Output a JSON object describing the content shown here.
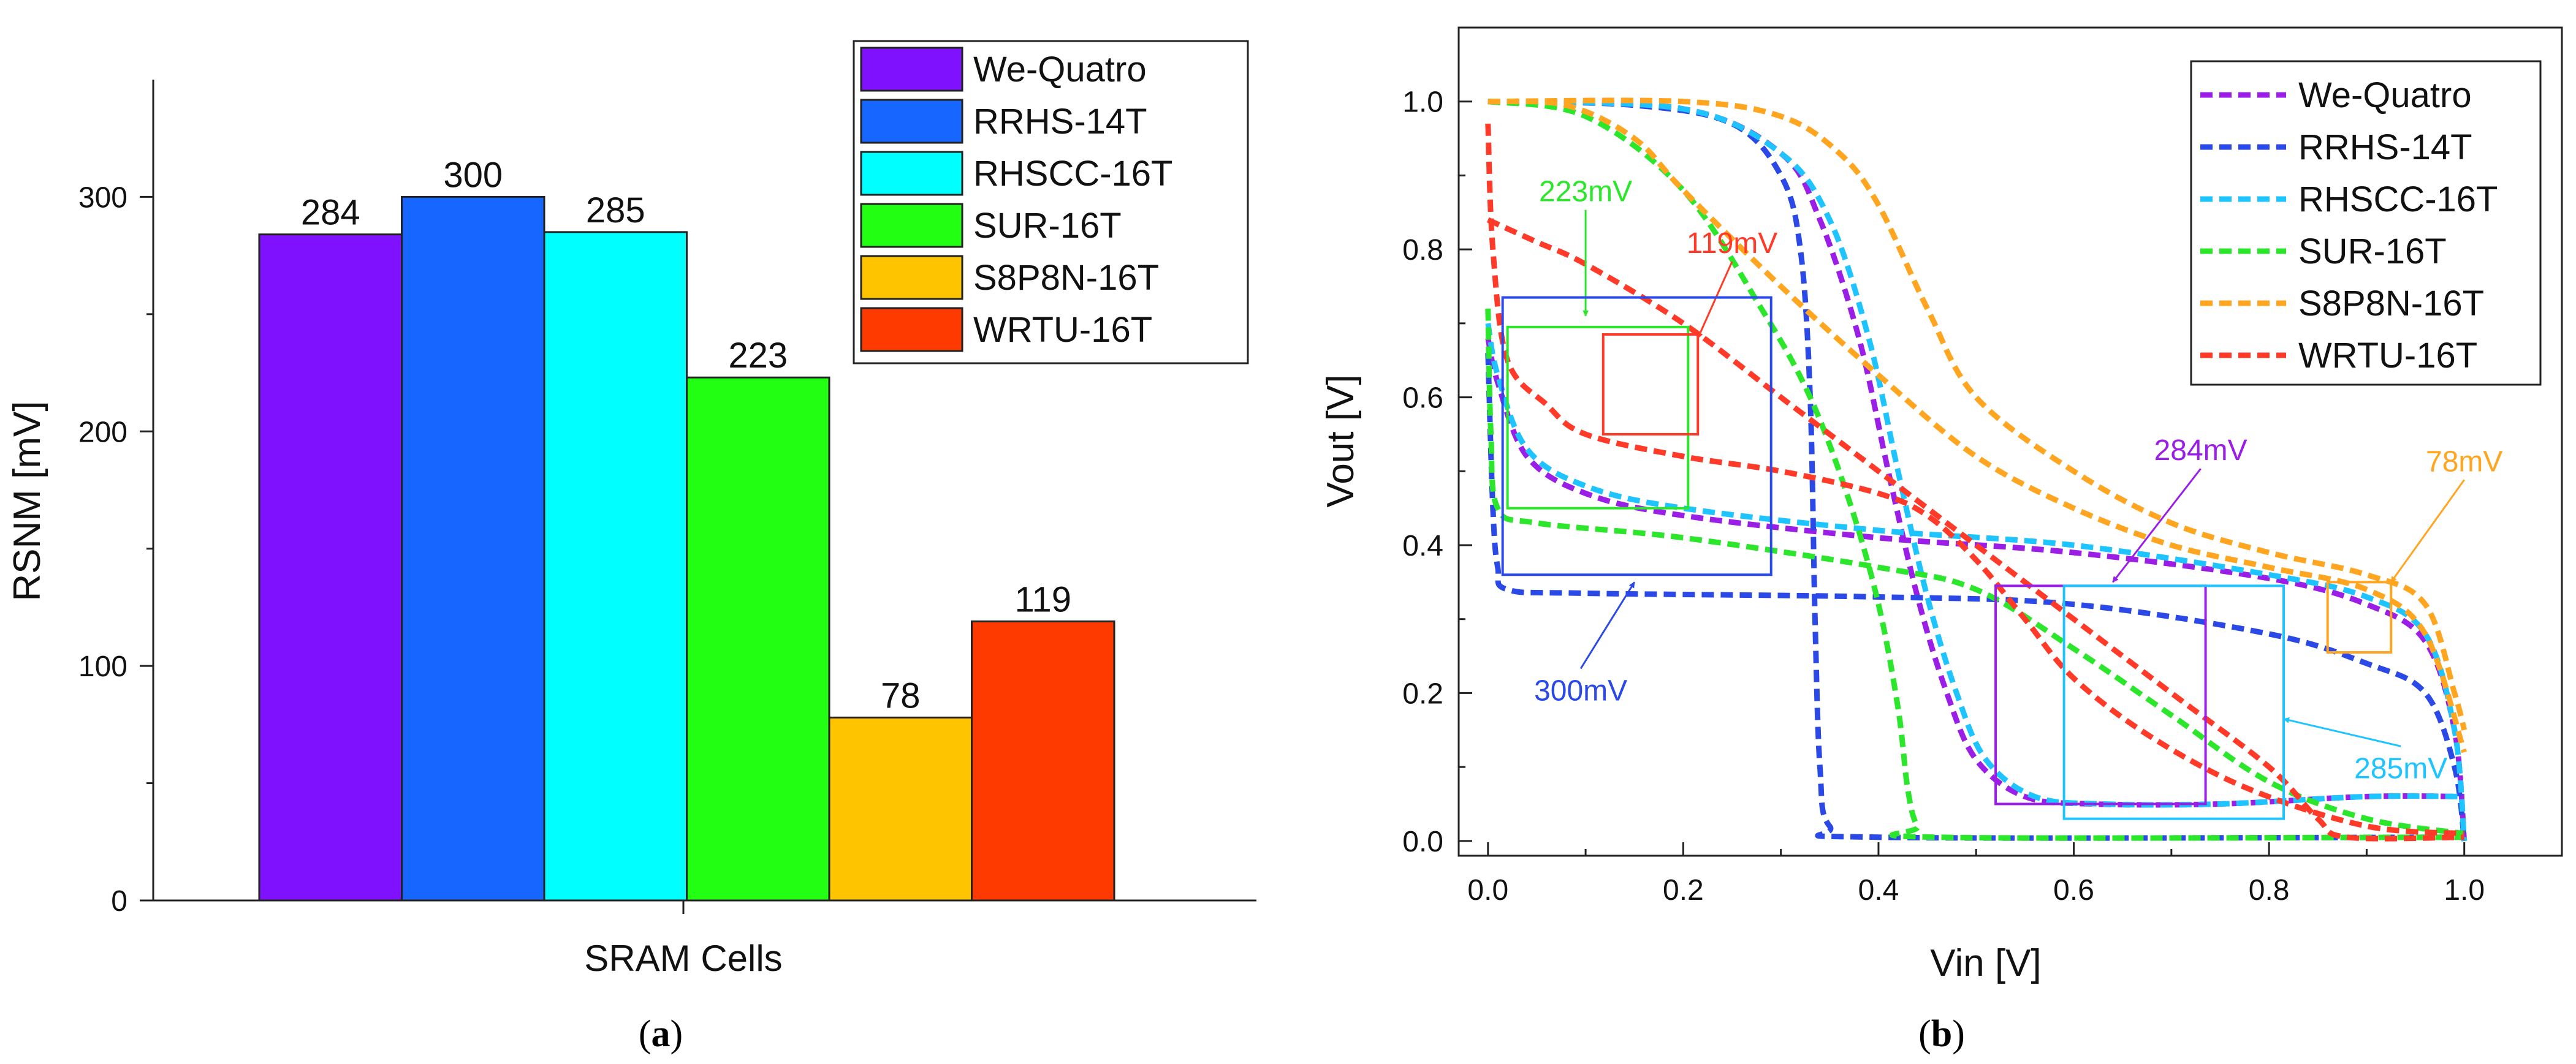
{
  "chart_data": [
    {
      "type": "bar",
      "panel_label": "a",
      "xlabel": "SRAM Cells",
      "ylabel": "RSNM [mV]",
      "ylim": [
        0,
        350
      ],
      "yticks": [
        0,
        100,
        200,
        300
      ],
      "grid": false,
      "legend_position": "top-right",
      "categories": [
        "We-Quatro",
        "RRHS-14T",
        "RHSCC-16T",
        "SUR-16T",
        "S8P8N-16T",
        "WRTU-16T"
      ],
      "values": [
        284,
        300,
        285,
        223,
        78,
        119
      ],
      "colors": [
        "#7f11ff",
        "#1666ff",
        "#00ffff",
        "#22ff12",
        "#ffc400",
        "#ff3a00"
      ]
    },
    {
      "type": "line",
      "panel_label": "b",
      "xlabel": "Vin [V]",
      "ylabel": "Vout [V]",
      "xlim": [
        -0.03,
        1.1
      ],
      "ylim": [
        -0.02,
        1.1
      ],
      "xticks": [
        0.0,
        0.2,
        0.4,
        0.6,
        0.8,
        1.0
      ],
      "yticks": [
        0.0,
        0.2,
        0.4,
        0.6,
        0.8,
        1.0
      ],
      "tick_labels": [
        "0.0",
        "0.2",
        "0.4",
        "0.6",
        "0.8",
        "1.0"
      ],
      "grid": false,
      "legend_position": "top-right",
      "series": [
        {
          "name": "We-Quatro",
          "color": "#9b1ee6",
          "forward": [
            [
              0,
              1
            ],
            [
              0.2,
              0.99
            ],
            [
              0.3,
              0.93
            ],
            [
              0.34,
              0.84
            ],
            [
              0.38,
              0.68
            ],
            [
              0.41,
              0.5
            ],
            [
              0.44,
              0.33
            ],
            [
              0.47,
              0.2
            ],
            [
              0.5,
              0.11
            ],
            [
              0.55,
              0.06
            ],
            [
              0.62,
              0.05
            ],
            [
              0.75,
              0.05
            ],
            [
              0.9,
              0.06
            ],
            [
              1,
              0.06
            ]
          ],
          "reverse": [
            [
              0,
              0.68
            ],
            [
              0.01,
              0.62
            ],
            [
              0.04,
              0.52
            ],
            [
              0.1,
              0.47
            ],
            [
              0.2,
              0.44
            ],
            [
              0.4,
              0.41
            ],
            [
              0.6,
              0.39
            ],
            [
              0.8,
              0.355
            ],
            [
              0.9,
              0.32
            ],
            [
              0.96,
              0.27
            ],
            [
              0.99,
              0.15
            ],
            [
              1,
              0
            ]
          ]
        },
        {
          "name": "RRHS-14T",
          "color": "#2a49e6",
          "forward": [
            [
              0,
              1
            ],
            [
              0.15,
              0.995
            ],
            [
              0.25,
              0.97
            ],
            [
              0.3,
              0.9
            ],
            [
              0.32,
              0.8
            ],
            [
              0.33,
              0.6
            ],
            [
              0.335,
              0.3
            ],
            [
              0.34,
              0.1
            ],
            [
              0.35,
              0.02
            ],
            [
              0.4,
              0.005
            ],
            [
              1,
              0.005
            ]
          ],
          "reverse": [
            [
              0,
              0.66
            ],
            [
              0.005,
              0.45
            ],
            [
              0.01,
              0.37
            ],
            [
              0.02,
              0.34
            ],
            [
              0.1,
              0.335
            ],
            [
              0.4,
              0.33
            ],
            [
              0.6,
              0.32
            ],
            [
              0.8,
              0.28
            ],
            [
              0.9,
              0.24
            ],
            [
              0.96,
              0.2
            ],
            [
              0.99,
              0.1
            ],
            [
              1,
              0
            ]
          ]
        },
        {
          "name": "RHSCC-16T",
          "color": "#1ec4ff",
          "forward": [
            [
              0,
              1
            ],
            [
              0.2,
              0.99
            ],
            [
              0.3,
              0.93
            ],
            [
              0.35,
              0.84
            ],
            [
              0.39,
              0.68
            ],
            [
              0.42,
              0.5
            ],
            [
              0.45,
              0.33
            ],
            [
              0.48,
              0.2
            ],
            [
              0.51,
              0.11
            ],
            [
              0.56,
              0.06
            ],
            [
              0.63,
              0.05
            ],
            [
              0.75,
              0.05
            ],
            [
              0.9,
              0.06
            ],
            [
              1,
              0.06
            ]
          ],
          "reverse": [
            [
              0,
              0.7
            ],
            [
              0.01,
              0.63
            ],
            [
              0.04,
              0.53
            ],
            [
              0.1,
              0.48
            ],
            [
              0.2,
              0.45
            ],
            [
              0.4,
              0.42
            ],
            [
              0.6,
              0.4
            ],
            [
              0.8,
              0.36
            ],
            [
              0.9,
              0.33
            ],
            [
              0.96,
              0.28
            ],
            [
              0.99,
              0.15
            ],
            [
              1,
              0
            ]
          ]
        },
        {
          "name": "SUR-16T",
          "color": "#2ce62c",
          "forward": [
            [
              0,
              1
            ],
            [
              0.1,
              0.98
            ],
            [
              0.2,
              0.88
            ],
            [
              0.28,
              0.72
            ],
            [
              0.33,
              0.6
            ],
            [
              0.37,
              0.46
            ],
            [
              0.4,
              0.32
            ],
            [
              0.42,
              0.18
            ],
            [
              0.43,
              0.07
            ],
            [
              0.44,
              0.02
            ],
            [
              0.46,
              0.005
            ],
            [
              1,
              0.005
            ]
          ],
          "reverse": [
            [
              0,
              0.72
            ],
            [
              0.003,
              0.55
            ],
            [
              0.01,
              0.45
            ],
            [
              0.05,
              0.43
            ],
            [
              0.2,
              0.41
            ],
            [
              0.4,
              0.37
            ],
            [
              0.5,
              0.34
            ],
            [
              0.6,
              0.26
            ],
            [
              0.7,
              0.17
            ],
            [
              0.8,
              0.08
            ],
            [
              0.9,
              0.03
            ],
            [
              1,
              0.01
            ]
          ]
        },
        {
          "name": "S8P8N-16T",
          "color": "#ffa520",
          "forward": [
            [
              0,
              1
            ],
            [
              0.2,
              1.0
            ],
            [
              0.3,
              0.98
            ],
            [
              0.36,
              0.93
            ],
            [
              0.4,
              0.86
            ],
            [
              0.45,
              0.72
            ],
            [
              0.5,
              0.6
            ],
            [
              0.6,
              0.5
            ],
            [
              0.7,
              0.43
            ],
            [
              0.8,
              0.39
            ],
            [
              0.9,
              0.36
            ],
            [
              0.96,
              0.32
            ],
            [
              0.99,
              0.2
            ],
            [
              1,
              0.15
            ]
          ],
          "reverse": [
            [
              0,
              1
            ],
            [
              0.08,
              0.995
            ],
            [
              0.15,
              0.95
            ],
            [
              0.2,
              0.88
            ],
            [
              0.3,
              0.75
            ],
            [
              0.4,
              0.63
            ],
            [
              0.5,
              0.52
            ],
            [
              0.6,
              0.45
            ],
            [
              0.7,
              0.4
            ],
            [
              0.8,
              0.37
            ],
            [
              0.9,
              0.34
            ],
            [
              0.96,
              0.28
            ],
            [
              1,
              0.12
            ]
          ]
        },
        {
          "name": "WRTU-16T",
          "color": "#ff3a28",
          "forward": [
            [
              0,
              0.84
            ],
            [
              0.05,
              0.81
            ],
            [
              0.1,
              0.78
            ],
            [
              0.2,
              0.7
            ],
            [
              0.3,
              0.6
            ],
            [
              0.4,
              0.5
            ],
            [
              0.5,
              0.4
            ],
            [
              0.6,
              0.3
            ],
            [
              0.7,
              0.2
            ],
            [
              0.8,
              0.1
            ],
            [
              0.85,
              0.03
            ],
            [
              0.88,
              0.005
            ],
            [
              1,
              0.005
            ]
          ],
          "reverse": [
            [
              0,
              0.97
            ],
            [
              0.005,
              0.8
            ],
            [
              0.02,
              0.65
            ],
            [
              0.06,
              0.59
            ],
            [
              0.1,
              0.55
            ],
            [
              0.2,
              0.52
            ],
            [
              0.3,
              0.5
            ],
            [
              0.4,
              0.47
            ],
            [
              0.45,
              0.44
            ],
            [
              0.5,
              0.38
            ],
            [
              0.55,
              0.3
            ],
            [
              0.6,
              0.22
            ],
            [
              0.68,
              0.14
            ],
            [
              0.78,
              0.07
            ],
            [
              0.9,
              0.02
            ],
            [
              1,
              0.01
            ]
          ]
        }
      ],
      "annotations": [
        {
          "text": "223mV",
          "color": "#2ce62c",
          "box": [
            0.02,
            0.45,
            0.205,
            0.695
          ],
          "label_at": [
            0.1,
            0.865
          ],
          "arrow_to": [
            0.1,
            0.71
          ]
        },
        {
          "text": "119mV",
          "color": "#ff3a28",
          "box": [
            0.118,
            0.55,
            0.215,
            0.685
          ],
          "label_at": [
            0.25,
            0.795
          ],
          "arrow_to": [
            0.215,
            0.68
          ]
        },
        {
          "text": "300mV",
          "color": "#2a49e6",
          "box": [
            0.015,
            0.36,
            0.29,
            0.735
          ],
          "label_at": [
            0.095,
            0.19
          ],
          "arrow_to": [
            0.15,
            0.35
          ]
        },
        {
          "text": "284mV",
          "color": "#9b1ee6",
          "box": [
            0.52,
            0.05,
            0.735,
            0.345
          ],
          "label_at": [
            0.73,
            0.515
          ],
          "arrow_to": [
            0.64,
            0.35
          ]
        },
        {
          "text": "285mV",
          "color": "#1ec4ff",
          "box": [
            0.59,
            0.03,
            0.815,
            0.345
          ],
          "label_at": [
            0.935,
            0.085
          ],
          "arrow_to": [
            0.815,
            0.165
          ]
        },
        {
          "text": "78mV",
          "color": "#ffa520",
          "box": [
            0.86,
            0.255,
            0.925,
            0.35
          ],
          "label_at": [
            1.0,
            0.5
          ],
          "arrow_to": [
            0.925,
            0.35
          ]
        }
      ]
    }
  ]
}
